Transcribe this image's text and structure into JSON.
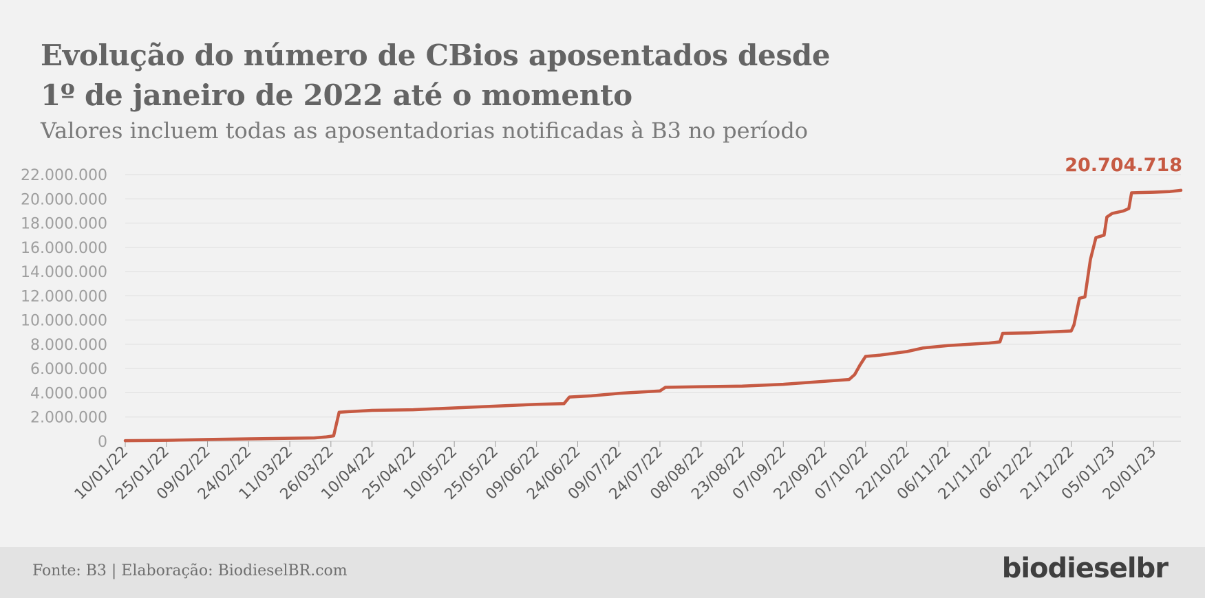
{
  "header": {
    "title_line1": "Evolução do número de CBios aposentados desde",
    "title_line2": "1º de janeiro de 2022 até o momento",
    "subtitle": "Valores incluem todas as aposentadorias notificadas à B3 no período"
  },
  "footer": {
    "source": "Fonte: B3 | Elaboração: BiodieselBR.com",
    "logo": "biodieselbr"
  },
  "colors": {
    "line": "#c65a43",
    "grid": "#dedede",
    "background": "#f2f2f2"
  },
  "chart_data": {
    "type": "line",
    "title": "Evolução do número de CBios aposentados desde 1º de janeiro de 2022 até o momento",
    "subtitle": "Valores incluem todas as aposentadorias notificadas à B3 no período",
    "x_type": "date",
    "xlim": [
      "2022-01-10",
      "2023-01-30"
    ],
    "ylim": [
      0,
      22000000
    ],
    "y_ticks": [
      0,
      2000000,
      4000000,
      6000000,
      8000000,
      10000000,
      12000000,
      14000000,
      16000000,
      18000000,
      20000000,
      22000000
    ],
    "y_tick_labels": [
      "0",
      "2.000.000",
      "4.000.000",
      "6.000.000",
      "8.000.000",
      "10.000.000",
      "12.000.000",
      "14.000.000",
      "16.000.000",
      "18.000.000",
      "20.000.000",
      "22.000.000"
    ],
    "x_ticks": [
      "2022-01-10",
      "2022-01-25",
      "2022-02-09",
      "2022-02-24",
      "2022-03-11",
      "2022-03-26",
      "2022-04-10",
      "2022-04-25",
      "2022-05-10",
      "2022-05-25",
      "2022-06-09",
      "2022-06-24",
      "2022-07-09",
      "2022-07-24",
      "2022-08-08",
      "2022-08-23",
      "2022-09-07",
      "2022-09-22",
      "2022-10-07",
      "2022-10-22",
      "2022-11-06",
      "2022-11-21",
      "2022-12-06",
      "2022-12-21",
      "2023-01-05",
      "2023-01-20"
    ],
    "x_tick_labels": [
      "10/01/22",
      "25/01/22",
      "09/02/22",
      "24/02/22",
      "11/03/22",
      "26/03/22",
      "10/04/22",
      "25/04/22",
      "10/05/22",
      "25/05/22",
      "09/06/22",
      "24/06/22",
      "09/07/22",
      "24/07/22",
      "08/08/22",
      "23/08/22",
      "07/09/22",
      "22/09/22",
      "07/10/22",
      "22/10/22",
      "06/11/22",
      "21/11/22",
      "06/12/22",
      "21/12/22",
      "05/01/23",
      "20/01/23"
    ],
    "grid": true,
    "end_label": "20.704.718",
    "series": [
      {
        "color": "#c65a43",
        "points": [
          [
            "2022-01-10",
            50000
          ],
          [
            "2022-01-25",
            80000
          ],
          [
            "2022-02-09",
            150000
          ],
          [
            "2022-02-24",
            200000
          ],
          [
            "2022-03-11",
            250000
          ],
          [
            "2022-03-20",
            280000
          ],
          [
            "2022-03-24",
            350000
          ],
          [
            "2022-03-27",
            450000
          ],
          [
            "2022-03-29",
            2400000
          ],
          [
            "2022-04-10",
            2550000
          ],
          [
            "2022-04-25",
            2600000
          ],
          [
            "2022-05-10",
            2750000
          ],
          [
            "2022-05-25",
            2900000
          ],
          [
            "2022-06-09",
            3050000
          ],
          [
            "2022-06-19",
            3100000
          ],
          [
            "2022-06-21",
            3650000
          ],
          [
            "2022-06-29",
            3750000
          ],
          [
            "2022-07-09",
            3950000
          ],
          [
            "2022-07-24",
            4150000
          ],
          [
            "2022-07-26",
            4450000
          ],
          [
            "2022-08-08",
            4500000
          ],
          [
            "2022-08-23",
            4550000
          ],
          [
            "2022-09-07",
            4700000
          ],
          [
            "2022-09-22",
            4950000
          ],
          [
            "2022-10-01",
            5100000
          ],
          [
            "2022-10-03",
            5500000
          ],
          [
            "2022-10-05",
            6300000
          ],
          [
            "2022-10-07",
            7000000
          ],
          [
            "2022-10-12",
            7100000
          ],
          [
            "2022-10-22",
            7400000
          ],
          [
            "2022-10-28",
            7700000
          ],
          [
            "2022-11-06",
            7900000
          ],
          [
            "2022-11-21",
            8100000
          ],
          [
            "2022-11-25",
            8200000
          ],
          [
            "2022-11-26",
            8900000
          ],
          [
            "2022-12-06",
            8950000
          ],
          [
            "2022-12-21",
            9100000
          ],
          [
            "2022-12-22",
            9600000
          ],
          [
            "2022-12-24",
            11800000
          ],
          [
            "2022-12-26",
            11900000
          ],
          [
            "2022-12-28",
            15000000
          ],
          [
            "2022-12-30",
            16800000
          ],
          [
            "2023-01-02",
            17000000
          ],
          [
            "2023-01-03",
            18500000
          ],
          [
            "2023-01-05",
            18800000
          ],
          [
            "2023-01-09",
            19000000
          ],
          [
            "2023-01-11",
            19200000
          ],
          [
            "2023-01-12",
            20500000
          ],
          [
            "2023-01-20",
            20550000
          ],
          [
            "2023-01-26",
            20600000
          ],
          [
            "2023-01-30",
            20704718
          ]
        ]
      }
    ]
  }
}
